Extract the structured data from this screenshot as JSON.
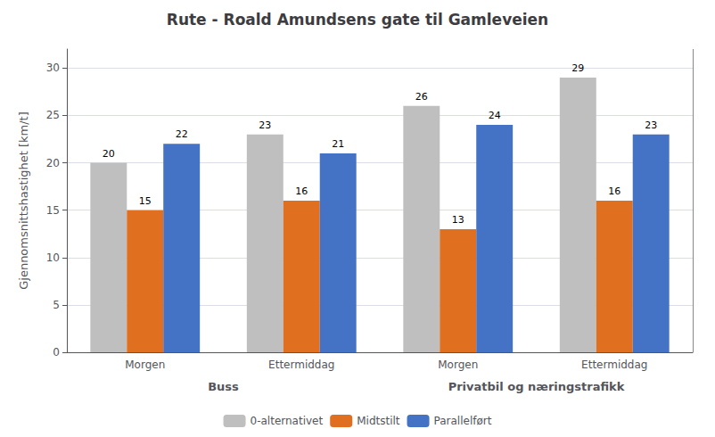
{
  "chart_data": {
    "type": "bar",
    "title": "Rute - Roald Amundsens gate til Gamleveien",
    "ylabel": "Gjennomsnittshastighet [km/t]",
    "categories": [
      "Morgen",
      "Ettermiddag",
      "Morgen",
      "Ettermiddag"
    ],
    "category_groups": [
      "Buss",
      "Buss",
      "Privatbil og næringstrafikk",
      "Privatbil og næringstrafikk"
    ],
    "series": [
      {
        "name": "0-alternativet",
        "color": "#BFBFBF",
        "values": [
          20,
          23,
          26,
          29
        ]
      },
      {
        "name": "Midtstilt",
        "color": "#E07020",
        "values": [
          15,
          16,
          13,
          16
        ]
      },
      {
        "name": "Parallelført",
        "color": "#4472C4",
        "values": [
          22,
          21,
          24,
          23
        ]
      }
    ],
    "ylim": [
      0,
      32
    ],
    "yticks": [
      0,
      5,
      10,
      15,
      20,
      25,
      30
    ],
    "grid": true,
    "legend": "bottom",
    "data_labels": true
  }
}
